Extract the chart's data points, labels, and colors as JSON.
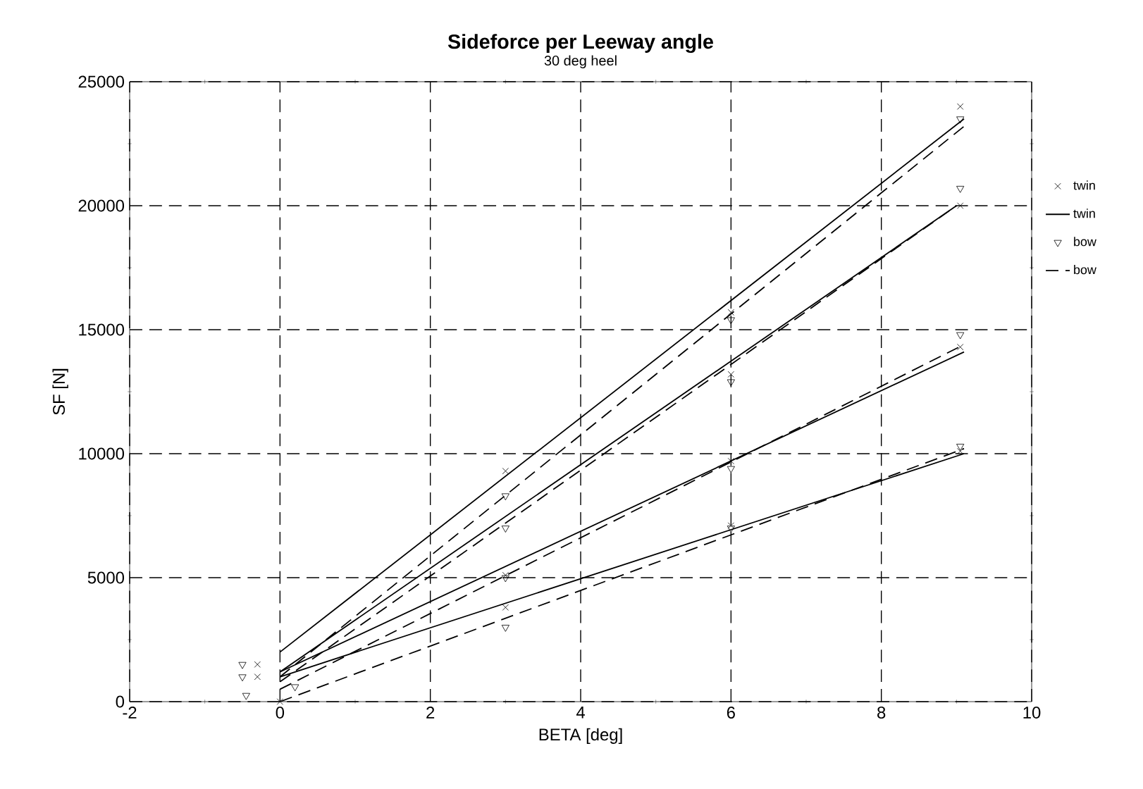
{
  "chart_data": {
    "type": "line",
    "title": "Sideforce per Leeway angle",
    "subtitle": "30 deg heel",
    "xlabel": "BETA  [deg]",
    "ylabel": "SF [N]",
    "xlim": [
      -2,
      10
    ],
    "xticks": [
      -2,
      0,
      2,
      4,
      6,
      8,
      10
    ],
    "ylim": [
      0,
      25000
    ],
    "yticks": [
      0,
      5000,
      10000,
      15000,
      20000,
      25000
    ],
    "grid": true,
    "legend": "right",
    "series": [
      {
        "name": "twin",
        "type": "scatter",
        "marker": "cross",
        "color": "#000000",
        "x": [
          -0.3,
          -0.3,
          0,
          3,
          3,
          3,
          6,
          6,
          6,
          6,
          9.05,
          9.05,
          9.05,
          9.05
        ],
        "values": [
          1500,
          1000,
          0,
          9300,
          5100,
          3800,
          15700,
          13200,
          9700,
          7100,
          24000,
          20000,
          14300,
          10100
        ]
      },
      {
        "name": "twin",
        "type": "line",
        "line_style": "solid",
        "color": "#000000",
        "x": [
          0,
          9.1
        ],
        "values": [
          2000,
          23500
        ]
      },
      {
        "type": "line",
        "line_style": "solid",
        "color": "#000000",
        "x": [
          0,
          9
        ],
        "values": [
          1200,
          20000
        ]
      },
      {
        "type": "line",
        "line_style": "solid",
        "color": "#000000",
        "x": [
          0,
          9.1
        ],
        "values": [
          1200,
          14100
        ]
      },
      {
        "type": "line",
        "line_style": "solid",
        "color": "#000000",
        "x": [
          0,
          9.1
        ],
        "values": [
          1000,
          10000
        ]
      },
      {
        "name": "bow",
        "type": "scatter",
        "marker": "triangle",
        "color": "#000000",
        "x": [
          -0.5,
          -0.5,
          -0.45,
          0.2,
          3,
          3,
          3,
          3,
          6,
          6,
          6,
          6,
          9.05,
          9.05,
          9.05,
          9.05
        ],
        "values": [
          1500,
          1000,
          250,
          600,
          8300,
          7000,
          5000,
          3000,
          15400,
          12900,
          9400,
          7000,
          23500,
          20700,
          14800,
          10300
        ]
      },
      {
        "name": "bow",
        "type": "line",
        "line_style": "dashed",
        "color": "#000000",
        "x": [
          0,
          9.1
        ],
        "values": [
          1000,
          23200
        ]
      },
      {
        "type": "line",
        "line_style": "dashed",
        "color": "#000000",
        "x": [
          0,
          9
        ],
        "values": [
          800,
          20000
        ]
      },
      {
        "type": "line",
        "line_style": "dashed",
        "color": "#000000",
        "x": [
          0,
          9.1
        ],
        "values": [
          500,
          14400
        ]
      },
      {
        "type": "line",
        "line_style": "dashed",
        "color": "#000000",
        "x": [
          0,
          9.1
        ],
        "values": [
          0,
          10200
        ]
      }
    ]
  }
}
